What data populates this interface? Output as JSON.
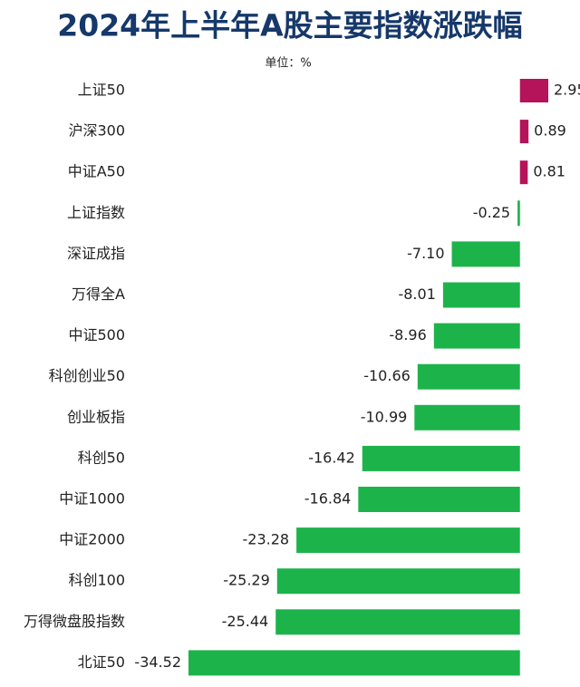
{
  "chart_data": {
    "type": "hbar",
    "title": "2024年上半年A股主要指数涨跌幅",
    "subtitle": "单位：%",
    "categories": [
      "上证50",
      "沪深300",
      "中证A50",
      "上证指数",
      "深证成指",
      "万得全A",
      "中证500",
      "科创创业50",
      "创业板指",
      "科创50",
      "中证1000",
      "中证2000",
      "科创100",
      "万得微盘股指数",
      "北证50"
    ],
    "values": [
      2.95,
      0.89,
      0.81,
      -0.25,
      -7.1,
      -8.01,
      -8.96,
      -10.66,
      -10.99,
      -16.42,
      -16.84,
      -23.28,
      -25.29,
      -25.44,
      -34.52
    ],
    "value_labels": [
      "2.95",
      "0.89",
      "0.81",
      "-0.25",
      "-7.10",
      "-8.01",
      "-8.96",
      "-10.66",
      "-10.99",
      "-16.42",
      "-16.84",
      "-23.28",
      "-25.29",
      "-25.44",
      "-34.52"
    ],
    "colors": {
      "positive": "#b5135a",
      "negative": "#1db34b"
    }
  }
}
